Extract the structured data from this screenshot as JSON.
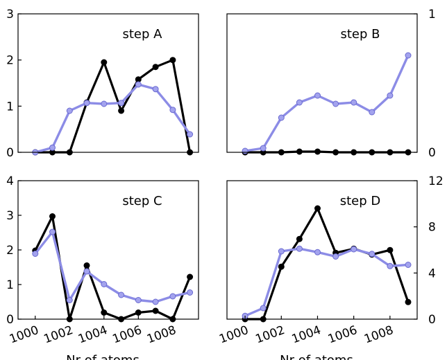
{
  "colors": {
    "series_dark": "#000000",
    "series_light": "#8c8ce6",
    "marker_light": "#a3a3ee",
    "frame": "#000000"
  },
  "chart_data": [
    {
      "type": "line",
      "title": "step A",
      "xlabel": "",
      "ylabel": "",
      "x": [
        1000,
        1001,
        1002,
        1003,
        1004,
        1005,
        1006,
        1007,
        1008,
        1009
      ],
      "xlim": [
        999,
        1009.5
      ],
      "ylim": [
        0,
        3
      ],
      "yticks": [
        "0",
        "1",
        "2",
        "3"
      ],
      "ytick_values": [
        0,
        1,
        2,
        3
      ],
      "yaxis_side": "left",
      "grid": false,
      "series": [
        {
          "color_key": "series_dark",
          "values": [
            0,
            0,
            0,
            1.08,
            1.95,
            0.9,
            1.58,
            1.85,
            2.0,
            0
          ]
        },
        {
          "color_key": "series_light",
          "values": [
            0,
            0.1,
            0.9,
            1.07,
            1.05,
            1.07,
            1.47,
            1.37,
            0.92,
            0.39
          ]
        }
      ]
    },
    {
      "type": "line",
      "title": "step B",
      "xlabel": "",
      "ylabel": "",
      "x": [
        1000,
        1001,
        1002,
        1003,
        1004,
        1005,
        1006,
        1007,
        1008,
        1009
      ],
      "xlim": [
        999,
        1009.5
      ],
      "ylim": [
        0,
        1
      ],
      "yticks": [
        "0",
        "1"
      ],
      "ytick_values": [
        0,
        1
      ],
      "yaxis_side": "right",
      "grid": false,
      "series": [
        {
          "color_key": "series_dark",
          "values": [
            0,
            0,
            0,
            0.005,
            0.005,
            0,
            0,
            0,
            0,
            0
          ]
        },
        {
          "color_key": "series_light",
          "values": [
            0.01,
            0.03,
            0.25,
            0.36,
            0.41,
            0.35,
            0.36,
            0.29,
            0.41,
            0.7
          ]
        }
      ]
    },
    {
      "type": "line",
      "title": "step C",
      "xlabel": "Nr of atoms",
      "ylabel": "",
      "x": [
        1000,
        1001,
        1002,
        1003,
        1004,
        1005,
        1006,
        1007,
        1008,
        1009
      ],
      "xlim": [
        999,
        1009.5
      ],
      "ylim": [
        0,
        4
      ],
      "yticks": [
        "0",
        "1",
        "2",
        "3",
        "4"
      ],
      "ytick_values": [
        0,
        1,
        2,
        3,
        4
      ],
      "xticks": [
        "1000",
        "1002",
        "1004",
        "1006",
        "1008"
      ],
      "xtick_values": [
        1000,
        1002,
        1004,
        1006,
        1008
      ],
      "yaxis_side": "left",
      "grid": false,
      "series": [
        {
          "color_key": "series_dark",
          "values": [
            1.98,
            2.97,
            0,
            1.55,
            0.19,
            0,
            0.19,
            0.24,
            0,
            1.22
          ]
        },
        {
          "color_key": "series_light",
          "values": [
            1.89,
            2.52,
            0.55,
            1.38,
            1.01,
            0.7,
            0.55,
            0.5,
            0.66,
            0.77
          ]
        }
      ]
    },
    {
      "type": "line",
      "title": "step D",
      "xlabel": "Nr of atoms",
      "ylabel": "",
      "x": [
        1000,
        1001,
        1002,
        1003,
        1004,
        1005,
        1006,
        1007,
        1008,
        1009
      ],
      "xlim": [
        999,
        1009.5
      ],
      "ylim": [
        0,
        12
      ],
      "yticks": [
        "0",
        "4",
        "8",
        "12"
      ],
      "ytick_values": [
        0,
        4,
        8,
        12
      ],
      "xticks": [
        "1000",
        "1002",
        "1004",
        "1006",
        "1008"
      ],
      "xtick_values": [
        1000,
        1002,
        1004,
        1006,
        1008
      ],
      "yaxis_side": "right",
      "grid": false,
      "series": [
        {
          "color_key": "series_dark",
          "values": [
            0,
            0,
            4.55,
            6.95,
            9.6,
            5.75,
            6.1,
            5.6,
            5.99,
            1.48
          ]
        },
        {
          "color_key": "series_light",
          "values": [
            0.28,
            0.96,
            5.88,
            6.11,
            5.8,
            5.43,
            6.06,
            5.65,
            4.6,
            4.71
          ]
        }
      ]
    }
  ]
}
